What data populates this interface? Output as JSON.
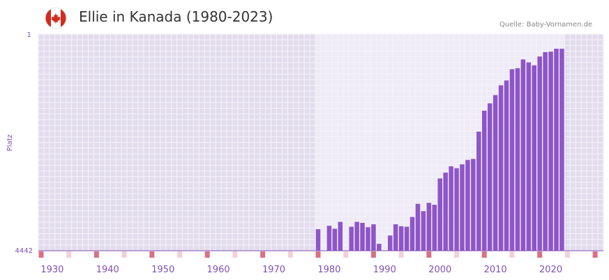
{
  "header": {
    "title": "Ellie in Kanada (1980-2023)",
    "source": "Quelle: Baby-Vornamen.de",
    "flag_icon": "canada-flag-icon"
  },
  "colors": {
    "bar": "#8e55c8",
    "axis_text": "#8050b8",
    "bg_outside": "#e2dcec",
    "bg_inside": "#efebf6",
    "grid": "#f6f3fb",
    "marker_decade": "#d97084",
    "marker_half": "#f4cfd9",
    "flag_red": "#d52b1e"
  },
  "chart_data": {
    "type": "bar",
    "title": "Ellie in Kanada (1980-2023)",
    "xlabel": "",
    "ylabel": "Platz",
    "ylim": [
      4442,
      1
    ],
    "y_ticks": [
      "1",
      "4442"
    ],
    "xlim": [
      1928,
      2029
    ],
    "x_ticks": [
      1930,
      1940,
      1950,
      1960,
      1970,
      1980,
      1990,
      2000,
      2010,
      2020
    ],
    "highlight_range": [
      1978,
      2023
    ],
    "x": [
      1978,
      1979,
      1980,
      1981,
      1982,
      1983,
      1984,
      1985,
      1986,
      1987,
      1988,
      1989,
      1990,
      1991,
      1992,
      1993,
      1994,
      1995,
      1996,
      1997,
      1998,
      1999,
      2000,
      2001,
      2002,
      2003,
      2004,
      2005,
      2006,
      2007,
      2008,
      2009,
      2010,
      2011,
      2012,
      2013,
      2014,
      2015,
      2016,
      2017,
      2018,
      2019,
      2020,
      2021,
      2022
    ],
    "values": [
      4000,
      null,
      3930,
      3990,
      3850,
      null,
      3950,
      3850,
      3870,
      3960,
      3900,
      4300,
      null,
      4130,
      3900,
      3940,
      3950,
      3750,
      3480,
      3630,
      3460,
      3500,
      2960,
      2840,
      2710,
      2750,
      2670,
      2580,
      2560,
      2000,
      1570,
      1420,
      1250,
      1050,
      950,
      720,
      700,
      520,
      580,
      640,
      460,
      370,
      360,
      300,
      300
    ]
  }
}
